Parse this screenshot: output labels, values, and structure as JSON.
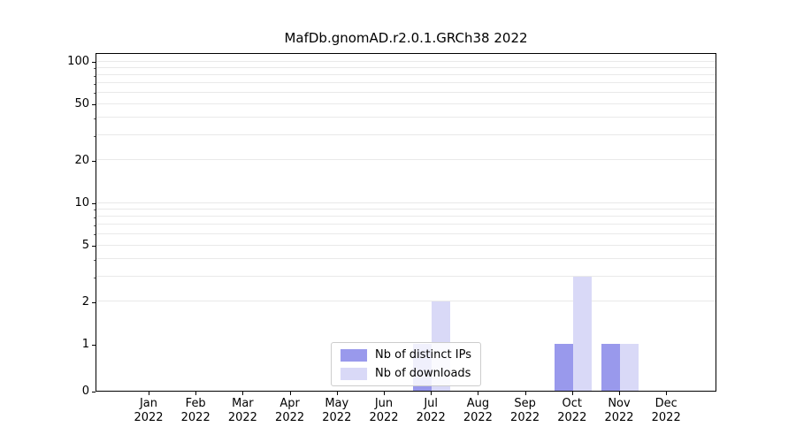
{
  "title": "MafDb.gnomAD.r2.0.1.GRCh38 2022",
  "chart_data": {
    "type": "bar",
    "title": "MafDb.gnomAD.r2.0.1.GRCh38 2022",
    "xlabel": "",
    "ylabel": "",
    "year": "2022",
    "categories": [
      "Jan",
      "Feb",
      "Mar",
      "Apr",
      "May",
      "Jun",
      "Jul",
      "Aug",
      "Sep",
      "Oct",
      "Nov",
      "Dec"
    ],
    "series": [
      {
        "name": "Nb of distinct IPs",
        "color": "#9999ec",
        "values": [
          0,
          0,
          0,
          0,
          0,
          0,
          1,
          0,
          0,
          1,
          1,
          0
        ]
      },
      {
        "name": "Nb of downloads",
        "color": "#d9d9f7",
        "values": [
          0,
          0,
          0,
          0,
          0,
          0,
          2,
          0,
          0,
          3,
          1,
          0
        ]
      }
    ],
    "yscale": "symlog",
    "ylim": [
      0,
      100
    ],
    "y_ticks": [
      0,
      1,
      2,
      5,
      10,
      20,
      50,
      100
    ],
    "minor_gridlines": [
      2,
      3,
      4,
      5,
      6,
      7,
      8,
      9,
      10,
      20,
      30,
      40,
      50,
      60,
      70,
      80,
      90,
      100
    ],
    "grid": "horizontal-minor",
    "legend_position": "bottom-center-inside"
  }
}
